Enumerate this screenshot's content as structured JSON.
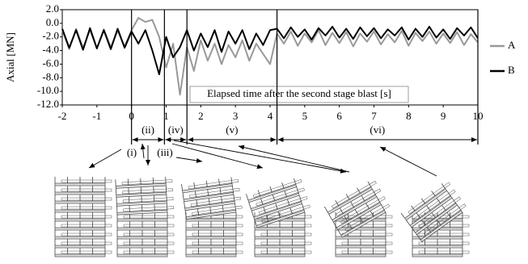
{
  "chart_data": {
    "type": "line",
    "y_label": "Axial [MN]",
    "annotation": "Elapsed time after the second stage blast [s]",
    "x": [
      -2,
      -1.8,
      -1.6,
      -1.4,
      -1.2,
      -1,
      -0.8,
      -0.6,
      -0.4,
      -0.2,
      0,
      0.2,
      0.4,
      0.6,
      0.8,
      1,
      1.2,
      1.4,
      1.6,
      1.8,
      2,
      2.2,
      2.4,
      2.6,
      2.8,
      3,
      3.2,
      3.4,
      3.6,
      3.8,
      4,
      4.2,
      4.4,
      4.6,
      4.8,
      5,
      5.2,
      5.4,
      5.6,
      5.8,
      6,
      6.2,
      6.4,
      6.6,
      6.8,
      7,
      7.2,
      7.4,
      7.6,
      7.8,
      8,
      8.2,
      8.4,
      8.6,
      8.8,
      9,
      9.2,
      9.4,
      9.6,
      9.8,
      10
    ],
    "series": [
      {
        "name": "A",
        "color": "#999999",
        "values": [
          -1.0,
          -3.8,
          -0.8,
          -3.6,
          -1.0,
          -3.7,
          -0.9,
          -3.5,
          -1.1,
          -3.4,
          -1.0,
          0.8,
          0.2,
          0.5,
          -2.0,
          -6.5,
          -3.0,
          -10.5,
          -3.5,
          -7.0,
          -2.5,
          -5.5,
          -3.0,
          -6.0,
          -3.2,
          -5.0,
          -2.5,
          -5.5,
          -3.0,
          -4.5,
          -6.0,
          -1.5,
          -3.0,
          -1.2,
          -3.3,
          -1.5,
          -2.8,
          -1.0,
          -3.2,
          -1.4,
          -2.9,
          -1.3,
          -3.4,
          -1.5,
          -2.7,
          -1.2,
          -3.1,
          -1.6,
          -2.8,
          -1.1,
          -3.3,
          -1.4,
          -2.6,
          -1.2,
          -3.0,
          -1.5,
          -2.9,
          -1.3,
          -3.2,
          -1.6,
          -2.8
        ]
      },
      {
        "name": "B",
        "color": "#000000",
        "values": [
          -0.8,
          -3.6,
          -1.0,
          -3.9,
          -0.7,
          -3.7,
          -1.0,
          -3.8,
          -0.8,
          -3.6,
          -1.2,
          -3.0,
          -1.0,
          -4.0,
          -7.5,
          -2.0,
          -5.0,
          -3.5,
          -1.0,
          -4.0,
          -1.5,
          -3.5,
          -1.0,
          -4.2,
          -1.2,
          -3.0,
          -1.0,
          -3.8,
          -1.5,
          -3.2,
          -1.0,
          -0.8,
          -2.2,
          -0.6,
          -2.0,
          -0.9,
          -2.4,
          -0.7,
          -1.8,
          -0.5,
          -2.1,
          -0.8,
          -2.3,
          -0.6,
          -1.9,
          -0.7,
          -2.2,
          -0.9,
          -1.8,
          -0.6,
          -2.4,
          -0.8,
          -2.0,
          -0.5,
          -2.1,
          -0.9,
          -2.3,
          -0.7,
          -1.8,
          -0.6,
          -2.2
        ]
      }
    ],
    "xlim": [
      -2,
      10
    ],
    "xticks": [
      -2,
      -1,
      0,
      1,
      2,
      3,
      4,
      5,
      6,
      7,
      8,
      9,
      10
    ],
    "ylim": [
      -12,
      2
    ],
    "yticks": [
      {
        "value": 2,
        "label": "2.0"
      },
      {
        "value": 0,
        "label": "0.0"
      },
      {
        "value": -2,
        "label": "-2.0"
      },
      {
        "value": -4,
        "label": "-4.0"
      },
      {
        "value": -6,
        "label": "-6.0"
      },
      {
        "value": -8,
        "label": "-8.0"
      },
      {
        "value": -10,
        "label": "-10.0"
      },
      {
        "value": -12,
        "label": "-12.0"
      }
    ],
    "phases": [
      {
        "label": "(i)"
      },
      {
        "label": "(ii)",
        "span": [
          0,
          0.95
        ]
      },
      {
        "label": "(iii)"
      },
      {
        "label": "(iv)",
        "span": [
          0.95,
          1.6
        ]
      },
      {
        "label": "(v)",
        "span": [
          1.6,
          4.2
        ]
      },
      {
        "label": "(vi)",
        "span": [
          4.2,
          10
        ]
      }
    ]
  }
}
